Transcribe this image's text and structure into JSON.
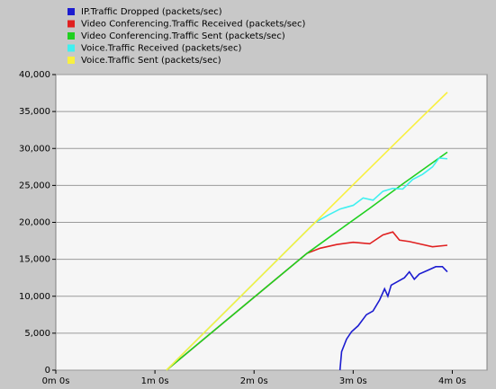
{
  "chart_data": {
    "type": "line",
    "series": [
      {
        "name": "IP.Traffic Dropped (packets/sec)",
        "color": "#1c1cd0",
        "x": [
          172,
          173,
          176,
          179,
          183,
          188,
          192,
          196,
          199,
          201,
          203,
          207,
          211,
          214,
          217,
          220,
          225,
          230,
          234,
          237
        ],
        "values": [
          0,
          2500,
          4200,
          5200,
          6000,
          7500,
          8000,
          9500,
          11000,
          10000,
          11500,
          12000,
          12500,
          13300,
          12300,
          13000,
          13500,
          14000,
          14000,
          13300
        ]
      },
      {
        "name": "Video Conferencing.Traffic Received (packets/sec)",
        "color": "#e02020",
        "x": [
          67,
          100,
          130,
          152,
          160,
          170,
          180,
          190,
          198,
          204,
          208,
          214,
          220,
          228,
          237
        ],
        "values": [
          0,
          6140,
          11720,
          15800,
          16500,
          17000,
          17300,
          17100,
          18300,
          18700,
          17600,
          17400,
          17100,
          16700,
          16900
        ]
      },
      {
        "name": "Video Conferencing.Traffic Sent (packets/sec)",
        "color": "#20d020",
        "x": [
          67,
          100,
          130,
          152,
          170,
          190,
          210,
          237
        ],
        "values": [
          0,
          6140,
          11720,
          15800,
          18700,
          21900,
          25200,
          29500
        ]
      },
      {
        "name": "Voice.Traffic Received (packets/sec)",
        "color": "#40f0f0",
        "x": [
          67,
          100,
          130,
          157,
          165,
          172,
          180,
          186,
          192,
          198,
          204,
          210,
          216,
          222,
          228,
          232,
          237
        ],
        "values": [
          0,
          7330,
          14000,
          20000,
          21000,
          21800,
          22300,
          23300,
          23000,
          24200,
          24600,
          24500,
          25800,
          26500,
          27500,
          28700,
          28600
        ]
      },
      {
        "name": "Voice.Traffic Sent (packets/sec)",
        "color": "#f8f040",
        "x": [
          67,
          100,
          130,
          157,
          180,
          200,
          220,
          237
        ],
        "values": [
          0,
          7330,
          14000,
          20000,
          25100,
          29500,
          33900,
          37600
        ]
      }
    ],
    "xlim": [
      0,
      261
    ],
    "xticks": [
      {
        "value": 0,
        "label": "0m 0s"
      },
      {
        "value": 60,
        "label": "1m 0s"
      },
      {
        "value": 120,
        "label": "2m 0s"
      },
      {
        "value": 180,
        "label": "3m 0s"
      },
      {
        "value": 240,
        "label": "4m 0s"
      }
    ],
    "ylim": [
      0,
      40000
    ],
    "yticks": [
      0,
      {
        "value": 5000,
        "label": "5,000"
      },
      {
        "value": 10000,
        "label": "10,000"
      },
      {
        "value": 15000,
        "label": "15,000"
      },
      {
        "value": 20000,
        "label": "20,000"
      },
      {
        "value": 25000,
        "label": "25,000"
      },
      {
        "value": 30000,
        "label": "30,000"
      },
      {
        "value": 35000,
        "label": "35,000"
      },
      {
        "value": 40000,
        "label": "40,000"
      }
    ],
    "grid": true
  }
}
